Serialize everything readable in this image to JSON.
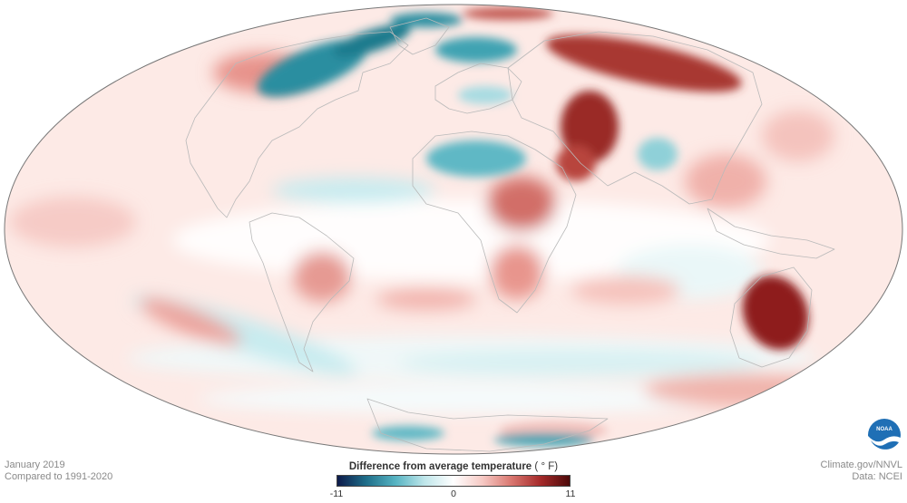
{
  "period": "January 2019",
  "baseline": "Compared to 1991-2020",
  "credit": "Climate.gov/NNVL",
  "data_source": "Data: NCEI",
  "legend": {
    "title": "Difference from average temperature",
    "unit": "( ° F)",
    "min_label": "-11",
    "mid_label": "0",
    "max_label": "11",
    "min": -11,
    "max": 11,
    "colors": [
      "#0d1a4a",
      "#1f6f8a",
      "#56b3c2",
      "#bfe6ea",
      "#ffffff",
      "#f6c9c4",
      "#d9766f",
      "#a52a2a",
      "#4d0a0a"
    ]
  },
  "logo": {
    "icon": "noaa-logo-icon",
    "text": "NOAA"
  },
  "map": {
    "projection": "Mollweide",
    "ocean_tint": "#fbe4e0",
    "outline_color": "#777777"
  }
}
